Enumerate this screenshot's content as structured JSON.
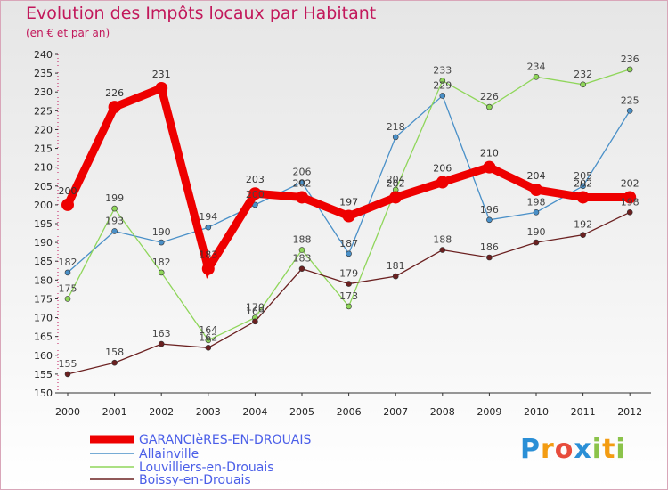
{
  "title": "Evolution des Impôts locaux par Habitant",
  "subtitle": "(en € et par an)",
  "logo": "Proxiti",
  "chart_data": {
    "type": "line",
    "title": "Evolution des Impôts locaux par Habitant",
    "subtitle": "(en € et par an)",
    "xlabel": "",
    "ylabel": "",
    "x": [
      "2000",
      "2001",
      "2002",
      "2003",
      "2004",
      "2005",
      "2006",
      "2007",
      "2008",
      "2009",
      "2010",
      "2011",
      "2012"
    ],
    "ylim": [
      150,
      240
    ],
    "yticks": [
      150,
      155,
      160,
      165,
      170,
      175,
      180,
      185,
      190,
      195,
      200,
      205,
      210,
      215,
      220,
      225,
      230,
      235,
      240
    ],
    "grid": false,
    "legend_position": "bottom-left",
    "series": [
      {
        "name": "GARANCIèRES-EN-DROUAIS",
        "color": "#ee0000",
        "bold": true,
        "values": [
          200,
          226,
          231,
          183,
          203,
          202,
          197,
          202,
          206,
          210,
          204,
          202,
          202
        ]
      },
      {
        "name": "Allainville",
        "color": "#4a90c8",
        "values": [
          182,
          193,
          190,
          194,
          200,
          206,
          187,
          218,
          229,
          196,
          198,
          205,
          225
        ]
      },
      {
        "name": "Louvilliers-en-Drouais",
        "color": "#8fd65a",
        "values": [
          175,
          199,
          182,
          164,
          170,
          188,
          173,
          204,
          233,
          226,
          234,
          232,
          236
        ]
      },
      {
        "name": "Boissy-en-Drouais",
        "color": "#6b2020",
        "values": [
          155,
          158,
          163,
          162,
          169,
          183,
          179,
          181,
          188,
          186,
          190,
          192,
          198
        ]
      }
    ]
  }
}
